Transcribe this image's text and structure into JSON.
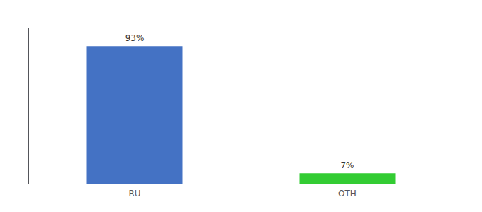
{
  "chart_data": {
    "type": "bar",
    "categories": [
      "RU",
      "OTH"
    ],
    "values": [
      93,
      7
    ],
    "value_labels": [
      "93%",
      "7%"
    ],
    "colors": [
      "#4472C4",
      "#33CC33"
    ],
    "ylim": [
      0,
      105
    ],
    "grid": false,
    "tick_labels": "x",
    "data_labels": true
  }
}
